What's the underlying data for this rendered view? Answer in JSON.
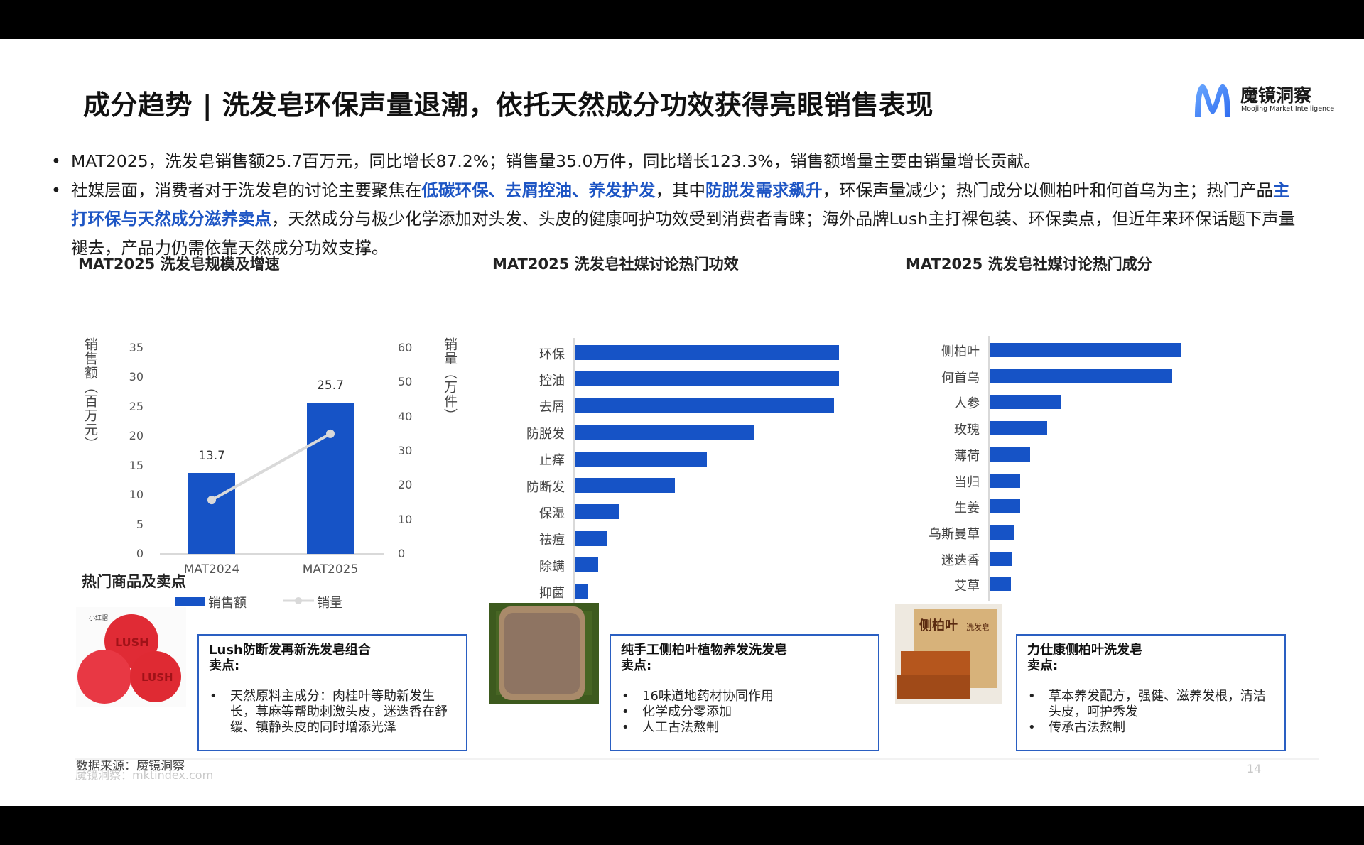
{
  "title": "成分趋势 | 洗发皂环保声量退潮，依托天然成分功效获得亮眼销售表现",
  "logo": {
    "cn": "魔镜洞察",
    "en": "Moojing Market Intelligence",
    "icon": "moojing-m-logo-icon",
    "color": "#3b82f6"
  },
  "bullets": [
    {
      "segments": [
        {
          "text": "MAT2025，洗发皂销售额25.7百万元，同比增长87.2%；销售量35.0万件，同比增长123.3%，销售额增量主要由销量增长贡献。",
          "highlight": false
        }
      ]
    },
    {
      "segments": [
        {
          "text": "社媒层面，消费者对于洗发皂的讨论主要聚焦在",
          "highlight": false
        },
        {
          "text": "低碳环保、去屑控油、养发护发",
          "highlight": true
        },
        {
          "text": "，其中",
          "highlight": false
        },
        {
          "text": "防脱发需求飙升",
          "highlight": true
        },
        {
          "text": "，环保声量减少；热门成分以侧柏叶和何首乌为主；热门产品",
          "highlight": false
        },
        {
          "text": "主打环保与天然成分滋养卖点",
          "highlight": true
        },
        {
          "text": "，天然成分与极少化学添加对头发、头皮的健康呵护功效受到消费者青睐；海外品牌Lush主打裸包装、环保卖点，但近年来环保话题下声量褪去，产品力仍需依靠天然成分功效支撑。",
          "highlight": false
        }
      ]
    }
  ],
  "colors": {
    "accent": "#1d55c4",
    "bar": "#1653c6",
    "line": "#d9d9d9",
    "box_border": "#2a5fc2"
  },
  "chart_data": [
    {
      "type": "bar+line",
      "title": "MAT2025 洗发皂规模及增速",
      "categories": [
        "MAT2024",
        "MAT2025"
      ],
      "series": [
        {
          "name": "销售额",
          "type": "bar",
          "axis": "left",
          "values": [
            13.7,
            25.7
          ],
          "labels": [
            "13.7",
            "25.7"
          ]
        },
        {
          "name": "销量",
          "type": "line",
          "axis": "right",
          "values": [
            15.7,
            35.0
          ]
        }
      ],
      "ylabel_left": "销售额（百万元）",
      "ylabel_right": "销量（万件）",
      "ylim_left": [
        0,
        35
      ],
      "yticks_left": [
        "35",
        "30",
        "25",
        "20",
        "15",
        "10",
        "5",
        "0"
      ],
      "ylim_right": [
        0,
        60
      ],
      "yticks_right": [
        "60",
        "50",
        "40",
        "30",
        "20",
        "10",
        "0"
      ],
      "legend": [
        "销售额",
        "销量"
      ],
      "legend_position": "bottom",
      "grid": false
    },
    {
      "type": "bar",
      "orientation": "horizontal",
      "title": "MAT2025 洗发皂社媒讨论热门功效",
      "categories": [
        "环保",
        "控油",
        "去屑",
        "防脱发",
        "止痒",
        "防断发",
        "保湿",
        "祛痘",
        "除螨",
        "抑菌"
      ],
      "values": [
        100,
        100,
        98,
        68,
        50,
        38,
        17,
        12,
        9,
        5
      ],
      "xlabel": "",
      "ylabel": "",
      "note": "relative values (% of max), no axis ticks shown"
    },
    {
      "type": "bar",
      "orientation": "horizontal",
      "title": "MAT2025 洗发皂社媒讨论热门成分",
      "categories": [
        "侧柏叶",
        "何首乌",
        "人参",
        "玫瑰",
        "薄荷",
        "当归",
        "生姜",
        "乌斯曼草",
        "迷迭香",
        "艾草"
      ],
      "values": [
        100,
        95,
        37,
        30,
        21,
        16,
        16,
        13,
        12,
        11
      ],
      "xlabel": "",
      "ylabel": "",
      "note": "relative values (% of max), no axis ticks shown"
    }
  ],
  "products_section": {
    "title": "热门商品及卖点",
    "items": [
      {
        "name": "Lush防断发再新洗发皂组合",
        "sub": "卖点:",
        "image": "lush-red-soap-bars-image",
        "points": [
          "天然原料主成分：肉桂叶等助新发生长，荨麻等帮助刺激头皮，迷迭香在舒缓、镇静头皮的同时增添光泽"
        ]
      },
      {
        "name": "纯手工侧柏叶植物养发洗发皂",
        "sub": "卖点:",
        "image": "handmade-brown-soap-on-grass-image",
        "points": [
          "16味道地药材协同作用",
          "化学成分零添加",
          "人工古法熬制"
        ]
      },
      {
        "name": "力仕康侧柏叶洗发皂",
        "sub": "卖点:",
        "image": "cebaiye-soap-box-image",
        "points": [
          "草本养发配方，强健、滋养发根，清洁头皮，呵护秀发",
          "传承古法熬制"
        ]
      }
    ]
  },
  "source": "数据来源：魔镜洞察",
  "footer": {
    "text": "魔镜洞察：mktindex.com",
    "page": "14"
  }
}
